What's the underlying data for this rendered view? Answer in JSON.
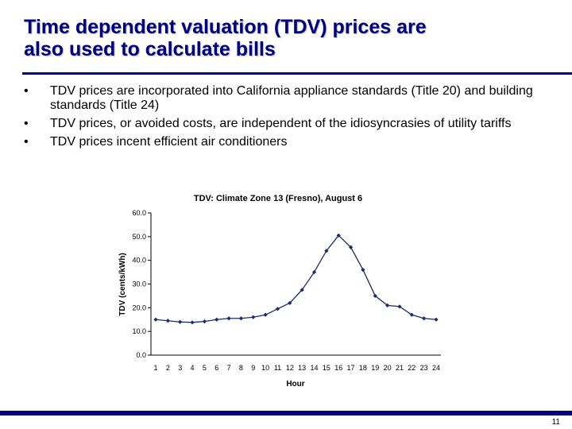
{
  "slide": {
    "title_line1": "Time dependent valuation (TDV) prices are",
    "title_line2": "also used to calculate bills",
    "bullet_symbol": "•",
    "bullets": [
      "TDV prices are incorporated into California appliance standards (Title 20) and building standards (Title 24)",
      "TDV prices, or avoided costs, are independent of the idiosyncrasies of utility tariffs",
      "TDV prices incent efficient air conditioners"
    ],
    "page_number": "11",
    "accent_color": "#000080"
  },
  "chart_data": {
    "type": "line",
    "title": "TDV: Climate Zone 13 (Fresno), August 6",
    "xlabel": "Hour",
    "ylabel": "TDV (cents/kWh)",
    "x": [
      1,
      2,
      3,
      4,
      5,
      6,
      7,
      8,
      9,
      10,
      11,
      12,
      13,
      14,
      15,
      16,
      17,
      18,
      19,
      20,
      21,
      22,
      23,
      24
    ],
    "ylim": [
      0,
      60
    ],
    "y_ticks": [
      "0.0",
      "10.0",
      "20.0",
      "30.0",
      "40.0",
      "50.0",
      "60.0"
    ],
    "series": [
      {
        "color": "#1a2a6c",
        "values": [
          15.0,
          14.5,
          14.0,
          13.8,
          14.2,
          15.0,
          15.5,
          15.5,
          16.0,
          17.0,
          19.5,
          22.0,
          27.5,
          35.0,
          44.0,
          50.5,
          45.5,
          36.0,
          25.0,
          21.0,
          20.5,
          17.0,
          15.5,
          15.0
        ]
      }
    ],
    "grid": false,
    "legend": "none"
  }
}
